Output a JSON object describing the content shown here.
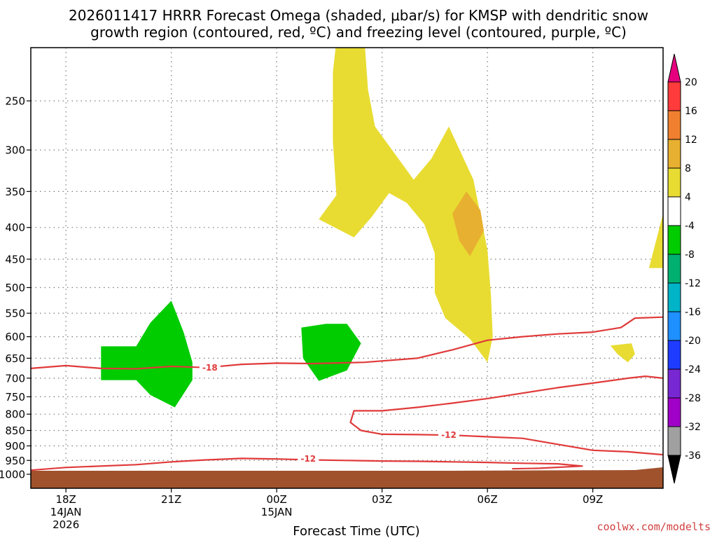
{
  "title": {
    "line1": "2026011417 HRRR Forecast Omega (shaded, μbar/s) for KMSP with dendritic snow",
    "line2": "growth region (contoured, red, ºC) and freezing level (contoured, purple, ºC)"
  },
  "xlabel": "Forecast Time (UTC)",
  "credit": "coolwx.com/modelts",
  "chart_data": {
    "type": "heatmap",
    "description_fields": {
      "shaded_variable": "Omega (μbar/s)",
      "contour_variable": "Temperature (ºC)"
    },
    "x_axis": {
      "unit": "hours since 18Z 14JAN",
      "range": [
        -1,
        17
      ],
      "ticks": [
        {
          "value": 0,
          "label": "18Z",
          "sub1": "14JAN",
          "sub2": "2026"
        },
        {
          "value": 3,
          "label": "21Z",
          "sub1": "",
          "sub2": ""
        },
        {
          "value": 6,
          "label": "00Z",
          "sub1": "15JAN",
          "sub2": ""
        },
        {
          "value": 9,
          "label": "03Z",
          "sub1": "",
          "sub2": ""
        },
        {
          "value": 12,
          "label": "06Z",
          "sub1": "",
          "sub2": ""
        },
        {
          "value": 15,
          "label": "09Z",
          "sub1": "",
          "sub2": ""
        }
      ]
    },
    "y_axis": {
      "unit": "hPa",
      "scale": "log",
      "reversed": true,
      "range": [
        200,
        1025
      ],
      "ticks": [
        250,
        300,
        350,
        400,
        450,
        500,
        550,
        600,
        650,
        700,
        750,
        800,
        850,
        900,
        950,
        1000
      ]
    },
    "grid": true,
    "ground_level_hPa": 1000,
    "colorbar": {
      "placement": "right",
      "labels": [
        "20",
        "16",
        "12",
        "8",
        "4",
        "-4",
        "-8",
        "-12",
        "-16",
        "-20",
        "-24",
        "-28",
        "-32",
        "-36"
      ],
      "colors": {
        "above_20": "#e6007e",
        "16_20": "#ff3b3b",
        "12_16": "#f08030",
        "8_12": "#e8b030",
        "4_8": "#e8dc32",
        "neutral": "#ffffff",
        "m8_m4": "#00cc00",
        "m12_m8": "#00b070",
        "m16_m12": "#00b4c8",
        "m20_m16": "#1e90ff",
        "m24_m20": "#1e3cff",
        "m28_m24": "#7828d2",
        "m32_m28": "#a000c8",
        "m36_m32": "#a0a0a0",
        "below_m36": "#000000"
      }
    },
    "colors": {
      "rising_light": "#e8dc32",
      "rising_medium": "#e8b030",
      "sinking_light": "#00cc00",
      "temperature_contour": "#e03a3a",
      "ground": "#a0522d"
    },
    "shaded_regions": [
      {
        "name": "upward-motion-main",
        "class": "4 to 8",
        "color": "#e8dc32",
        "points": [
          [
            7.7,
            200
          ],
          [
            8.5,
            200
          ],
          [
            8.6,
            240
          ],
          [
            8.8,
            275
          ],
          [
            9.9,
            335
          ],
          [
            10.4,
            310
          ],
          [
            10.9,
            275
          ],
          [
            11.6,
            335
          ],
          [
            12.0,
            435
          ],
          [
            12.1,
            515
          ],
          [
            12.15,
            600
          ],
          [
            12.0,
            660
          ],
          [
            11.5,
            605
          ],
          [
            10.8,
            560
          ],
          [
            10.5,
            510
          ],
          [
            10.5,
            440
          ],
          [
            10.2,
            395
          ],
          [
            9.7,
            365
          ],
          [
            9.2,
            352
          ],
          [
            8.7,
            385
          ],
          [
            8.2,
            415
          ],
          [
            7.2,
            388
          ],
          [
            7.7,
            355
          ],
          [
            7.6,
            290
          ],
          [
            7.6,
            225
          ]
        ]
      },
      {
        "name": "upward-motion-core",
        "class": "8 to 12",
        "color": "#e8b030",
        "points": [
          [
            11.0,
            380
          ],
          [
            11.4,
            350
          ],
          [
            11.8,
            375
          ],
          [
            11.9,
            405
          ],
          [
            11.5,
            445
          ],
          [
            11.2,
            420
          ]
        ]
      },
      {
        "name": "upward-motion-right",
        "class": "4 to 8",
        "color": "#e8dc32",
        "points": [
          [
            16.6,
            465
          ],
          [
            17,
            380
          ],
          [
            17,
            465
          ]
        ]
      },
      {
        "name": "upward-motion-small",
        "class": "4 to 8",
        "color": "#e8dc32",
        "points": [
          [
            15.5,
            620
          ],
          [
            16.1,
            615
          ],
          [
            16.2,
            640
          ],
          [
            16.0,
            660
          ],
          [
            15.7,
            640
          ]
        ]
      },
      {
        "name": "sinking-motion-1",
        "class": "-8 to -4",
        "color": "#00cc00",
        "points": [
          [
            1.0,
            622
          ],
          [
            2.0,
            622
          ],
          [
            2.4,
            570
          ],
          [
            3.0,
            525
          ],
          [
            3.35,
            590
          ],
          [
            3.6,
            660
          ],
          [
            3.6,
            705
          ],
          [
            3.1,
            780
          ],
          [
            2.4,
            745
          ],
          [
            2.0,
            705
          ],
          [
            1.0,
            705
          ]
        ]
      },
      {
        "name": "sinking-motion-2",
        "class": "-8 to -4",
        "color": "#00cc00",
        "points": [
          [
            6.7,
            580
          ],
          [
            7.4,
            572
          ],
          [
            8.0,
            572
          ],
          [
            8.4,
            615
          ],
          [
            8.0,
            680
          ],
          [
            7.2,
            707
          ],
          [
            6.75,
            650
          ]
        ]
      }
    ],
    "temperature_contours": [
      {
        "label": "-18",
        "color": "#e03a3a",
        "label_at": [
          4.1,
          673
        ],
        "points": [
          [
            -1,
            675
          ],
          [
            0,
            668
          ],
          [
            1.0,
            675
          ],
          [
            2.0,
            676
          ],
          [
            3.0,
            670
          ],
          [
            4.0,
            673
          ],
          [
            5.0,
            665
          ],
          [
            6.0,
            662
          ],
          [
            7.0,
            663
          ],
          [
            8.5,
            660
          ],
          [
            10.0,
            650
          ],
          [
            11.0,
            630
          ],
          [
            12.0,
            608
          ],
          [
            13.0,
            600
          ],
          [
            14.0,
            594
          ],
          [
            15.0,
            590
          ],
          [
            15.8,
            580
          ],
          [
            16.2,
            560
          ],
          [
            17,
            558
          ]
        ]
      },
      {
        "label": "-12",
        "color": "#e03a3a",
        "label_at": [
          10.9,
          863
        ],
        "points": [
          [
            17,
            700
          ],
          [
            16.5,
            695
          ],
          [
            16.0,
            700
          ],
          [
            15.0,
            713
          ],
          [
            14.0,
            725
          ],
          [
            13.0,
            740
          ],
          [
            12.0,
            755
          ],
          [
            11.0,
            768
          ],
          [
            10.0,
            780
          ],
          [
            9.0,
            790
          ],
          [
            8.2,
            790
          ],
          [
            8.1,
            825
          ],
          [
            8.4,
            850
          ],
          [
            9.0,
            862
          ],
          [
            10.0,
            863
          ],
          [
            11.0,
            865
          ],
          [
            12.0,
            870
          ],
          [
            13.0,
            875
          ],
          [
            14.0,
            895
          ],
          [
            15.0,
            915
          ],
          [
            16.0,
            920
          ],
          [
            17,
            930
          ]
        ]
      },
      {
        "label": "-12",
        "color": "#e03a3a",
        "label_at": [
          6.9,
          943
        ],
        "points": [
          [
            -1,
            985
          ],
          [
            0,
            975
          ],
          [
            2.0,
            965
          ],
          [
            3.0,
            955
          ],
          [
            4.0,
            948
          ],
          [
            5.0,
            943
          ],
          [
            6.0,
            945
          ],
          [
            7.0,
            948
          ],
          [
            8.0,
            950
          ],
          [
            9.0,
            952
          ],
          [
            10.0,
            953
          ],
          [
            11.0,
            955
          ],
          [
            12.0,
            957
          ],
          [
            13.0,
            960
          ],
          [
            14.0,
            962
          ],
          [
            14.7,
            970
          ],
          [
            13.5,
            978
          ],
          [
            12.7,
            980
          ]
        ]
      }
    ]
  }
}
